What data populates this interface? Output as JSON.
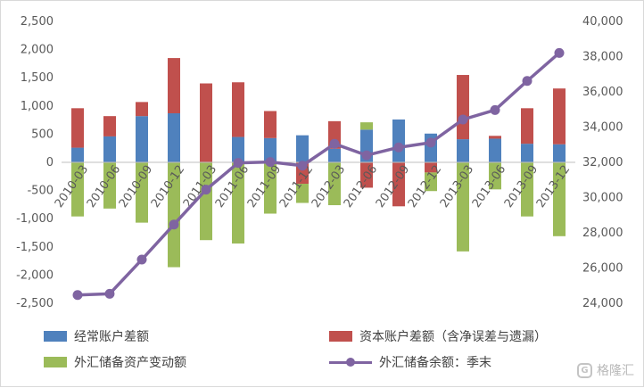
{
  "chart_data": {
    "type": "bar",
    "categories": [
      "2010-03",
      "2010-06",
      "2010-09",
      "2010-12",
      "2011-03",
      "2011-06",
      "2011-09",
      "2011-12",
      "2012-03",
      "2012-06",
      "2012-09",
      "2012-12",
      "2013-03",
      "2013-06",
      "2013-09",
      "2013-12"
    ],
    "stacked": true,
    "series": [
      {
        "name": "经常账户差额",
        "type": "bar",
        "axis": "left",
        "color": "#4f81bd",
        "values": [
          260,
          460,
          820,
          870,
          0,
          450,
          430,
          480,
          240,
          580,
          760,
          510,
          410,
          420,
          330,
          320
        ]
      },
      {
        "name": "资本账户差额（含净误差与遗漏）",
        "type": "bar",
        "axis": "left",
        "color": "#c0504d",
        "values": [
          700,
          360,
          250,
          980,
          1400,
          970,
          480,
          -380,
          490,
          -450,
          -780,
          -180,
          1140,
          50,
          630,
          990
        ]
      },
      {
        "name": "外汇储备资产变动额",
        "type": "bar",
        "axis": "left",
        "color": "#9bbb59",
        "values": [
          -960,
          -820,
          -1070,
          -1860,
          -1380,
          -1440,
          -910,
          -340,
          -760,
          130,
          0,
          -330,
          -1580,
          -480,
          -960,
          -1310
        ]
      },
      {
        "name": "外汇储备余额：季末",
        "type": "line",
        "axis": "right",
        "color": "#7f64a1",
        "values": [
          24470,
          24540,
          26480,
          28470,
          30450,
          31970,
          32020,
          31810,
          33050,
          32400,
          32850,
          33120,
          34430,
          34970,
          36620,
          38210
        ]
      }
    ],
    "y_left": {
      "min": -2500,
      "max": 2500,
      "step": 500
    },
    "y_right": {
      "min": 24000,
      "max": 40000,
      "step": 2000
    },
    "grid": false,
    "legend_position": "bottom"
  },
  "legend": [
    {
      "label": "经常账户差额",
      "color": "#4f81bd",
      "kind": "bar"
    },
    {
      "label": "资本账户差额（含净误差与遗漏）",
      "color": "#c0504d",
      "kind": "bar"
    },
    {
      "label": "外汇储备资产变动额",
      "color": "#9bbb59",
      "kind": "bar"
    },
    {
      "label": "外汇储备余额：季末",
      "color": "#7f64a1",
      "kind": "line"
    }
  ],
  "watermark": {
    "text": "格隆汇",
    "icon": "gelonghui-logo-icon"
  }
}
